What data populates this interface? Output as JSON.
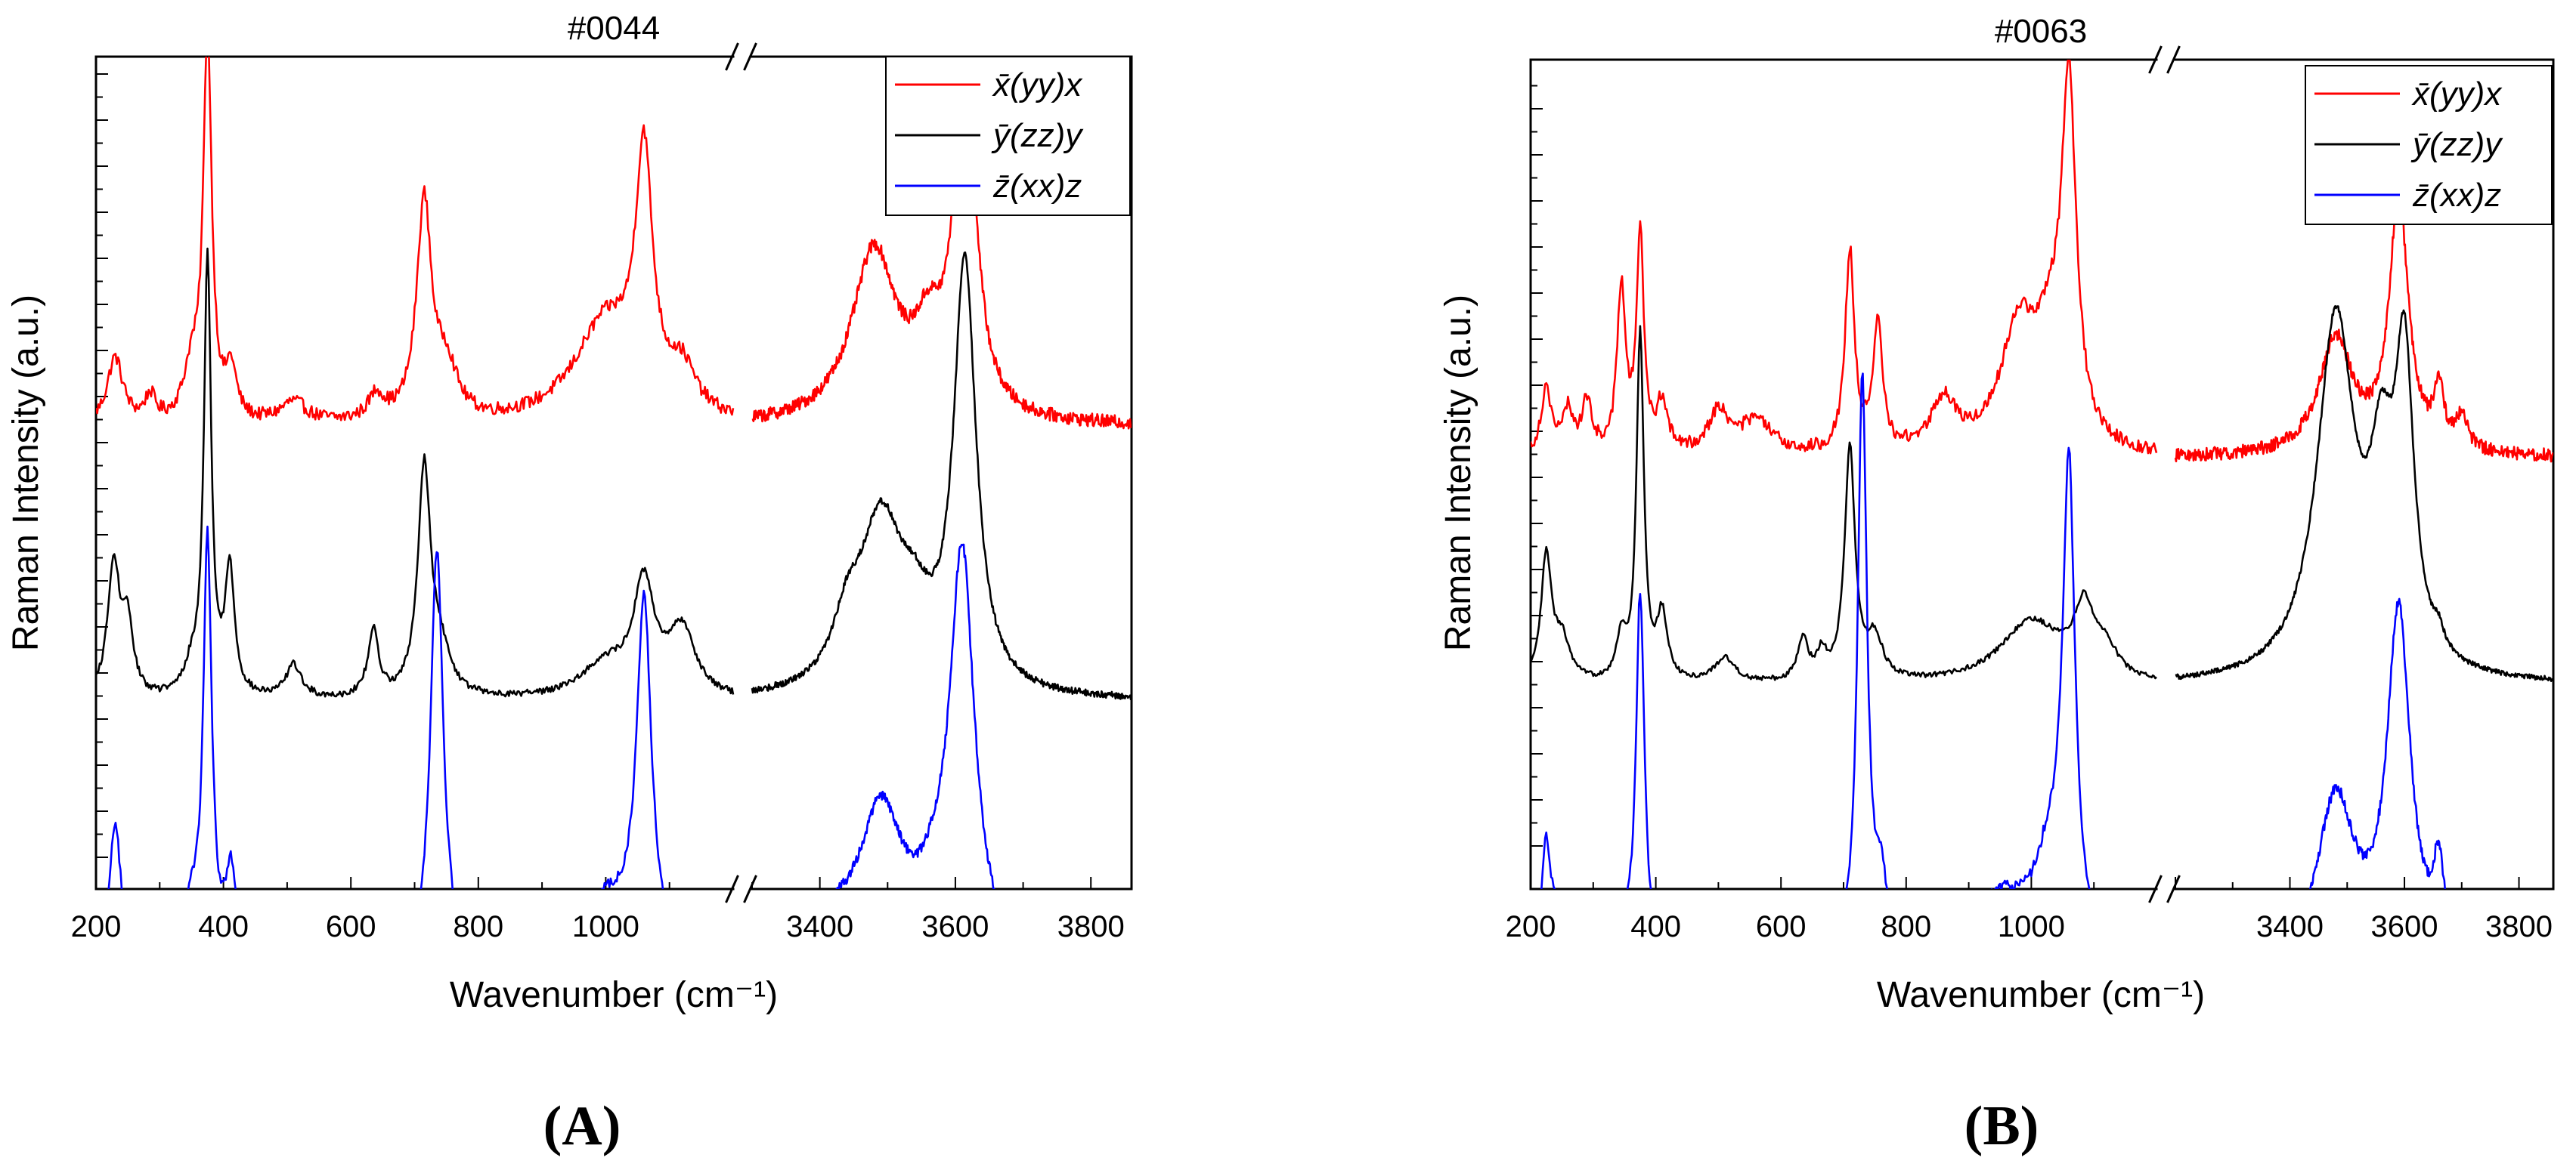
{
  "chart_data": [
    {
      "type": "line",
      "panel_label": "(A)",
      "title": "#0044",
      "xlabel": "Wavenumber (cm⁻¹)",
      "ylabel": "Raman Intensity (a.u.)",
      "x_ticks_left": [
        "200",
        "400",
        "600",
        "800",
        "1000"
      ],
      "x_ticks_right": [
        "3400",
        "3600",
        "3800"
      ],
      "x_segments": [
        [
          200,
          1200
        ],
        [
          3300,
          3860
        ]
      ],
      "legend": {
        "placement": "top-right"
      },
      "series": [
        {
          "name": "x̄(yy)x",
          "color": "#ff0000",
          "baseline": 0.555,
          "noise": 0.008,
          "peaks": [
            [
              230,
              0.08,
              15
            ],
            [
              375,
              0.46,
              8
            ],
            [
              350,
              0.06,
              15
            ],
            [
              412,
              0.06,
              10
            ],
            [
              285,
              0.03,
              10
            ],
            [
              510,
              0.025,
              25
            ],
            [
              640,
              0.03,
              15
            ],
            [
              715,
              0.26,
              14
            ],
            [
              750,
              0.06,
              20
            ],
            [
              1060,
              0.29,
              16
            ],
            [
              1000,
              0.12,
              60
            ],
            [
              1120,
              0.05,
              25
            ],
            [
              3480,
              0.205,
              40
            ],
            [
              3614,
              0.455,
              18
            ],
            [
              3560,
              0.08,
              25
            ]
          ]
        },
        {
          "name": "ȳ(zz)y",
          "color": "#000000",
          "baseline": 0.225,
          "noise": 0.004,
          "peaks": [
            [
              228,
              0.16,
              12
            ],
            [
              250,
              0.08,
              10
            ],
            [
              375,
              0.52,
              7
            ],
            [
              410,
              0.15,
              9
            ],
            [
              350,
              0.03,
              15
            ],
            [
              510,
              0.04,
              15
            ],
            [
              635,
              0.08,
              10
            ],
            [
              715,
              0.27,
              12
            ],
            [
              740,
              0.05,
              20
            ],
            [
              1060,
              0.13,
              20
            ],
            [
              1000,
              0.04,
              50
            ],
            [
              1120,
              0.08,
              25
            ],
            [
              3490,
              0.2,
              40
            ],
            [
              3440,
              0.06,
              25
            ],
            [
              3540,
              0.06,
              30
            ],
            [
              3614,
              0.51,
              20
            ]
          ]
        },
        {
          "name": "z̄(xx)z",
          "color": "#0000ff",
          "baseline": -0.1,
          "noise": 0.006,
          "peaks": [
            [
              230,
              0.17,
              12
            ],
            [
              375,
              0.5,
              8
            ],
            [
              412,
              0.1,
              10
            ],
            [
              350,
              0.06,
              15
            ],
            [
              500,
              0.05,
              50
            ],
            [
              640,
              0.04,
              25
            ],
            [
              735,
              0.5,
              12
            ],
            [
              1060,
              0.42,
              14
            ],
            [
              1000,
              0.08,
              50
            ],
            [
              1140,
              0.06,
              15
            ],
            [
              3490,
              0.18,
              40
            ],
            [
              3420,
              0.04,
              40
            ],
            [
              3610,
              0.48,
              22
            ],
            [
              3570,
              0.05,
              30
            ]
          ]
        }
      ]
    },
    {
      "type": "line",
      "panel_label": "(B)",
      "title": "#0063",
      "xlabel": "Wavenumber (cm⁻¹)",
      "ylabel": "Raman Intensity (a.u.)",
      "x_ticks_left": [
        "200",
        "400",
        "600",
        "800",
        "1000"
      ],
      "x_ticks_right": [
        "3400",
        "3600",
        "3800"
      ],
      "x_segments": [
        [
          200,
          1200
        ],
        [
          3200,
          3860
        ]
      ],
      "legend": {
        "placement": "top-right"
      },
      "series": [
        {
          "name": "x̄(yy)x",
          "color": "#ff0000",
          "baseline": 0.52,
          "noise": 0.008,
          "peaks": [
            [
              225,
              0.08,
              10
            ],
            [
              260,
              0.05,
              10
            ],
            [
              290,
              0.06,
              10
            ],
            [
              345,
              0.2,
              8
            ],
            [
              375,
              0.26,
              7
            ],
            [
              410,
              0.06,
              10
            ],
            [
              500,
              0.05,
              20
            ],
            [
              560,
              0.04,
              30
            ],
            [
              710,
              0.24,
              9
            ],
            [
              755,
              0.15,
              9
            ],
            [
              860,
              0.06,
              25
            ],
            [
              980,
              0.15,
              35
            ],
            [
              1030,
              0.1,
              25
            ],
            [
              1060,
              0.42,
              14
            ],
            [
              3480,
              0.14,
              35
            ],
            [
              3590,
              0.31,
              20
            ],
            [
              3660,
              0.07,
              10
            ],
            [
              3700,
              0.04,
              12
            ]
          ]
        },
        {
          "name": "ȳ(zz)y",
          "color": "#000000",
          "baseline": 0.245,
          "noise": 0.003,
          "peaks": [
            [
              225,
              0.15,
              10
            ],
            [
              250,
              0.05,
              15
            ],
            [
              345,
              0.05,
              10
            ],
            [
              375,
              0.42,
              7
            ],
            [
              410,
              0.08,
              10
            ],
            [
              510,
              0.03,
              20
            ],
            [
              635,
              0.05,
              10
            ],
            [
              665,
              0.03,
              10
            ],
            [
              710,
              0.28,
              10
            ],
            [
              750,
              0.05,
              15
            ],
            [
              1000,
              0.075,
              60
            ],
            [
              1085,
              0.08,
              20
            ],
            [
              1120,
              0.03,
              20
            ],
            [
              3480,
              0.43,
              40
            ],
            [
              3560,
              0.2,
              25
            ],
            [
              3600,
              0.35,
              20
            ],
            [
              3660,
              0.02,
              10
            ]
          ]
        },
        {
          "name": "z̄(xx)z",
          "color": "#0000ff",
          "baseline": -0.1,
          "noise": 0.007,
          "peaks": [
            [
              225,
              0.14,
              10
            ],
            [
              250,
              0.06,
              15
            ],
            [
              340,
              0.06,
              15
            ],
            [
              375,
              0.44,
              8
            ],
            [
              450,
              0.03,
              15
            ],
            [
              540,
              0.06,
              60
            ],
            [
              730,
              0.7,
              9
            ],
            [
              760,
              0.08,
              12
            ],
            [
              950,
              0.08,
              60
            ],
            [
              1030,
              0.1,
              30
            ],
            [
              1060,
              0.56,
              12
            ],
            [
              3480,
              0.2,
              40
            ],
            [
              3590,
              0.42,
              25
            ],
            [
              3660,
              0.1,
              12
            ]
          ]
        }
      ]
    }
  ]
}
